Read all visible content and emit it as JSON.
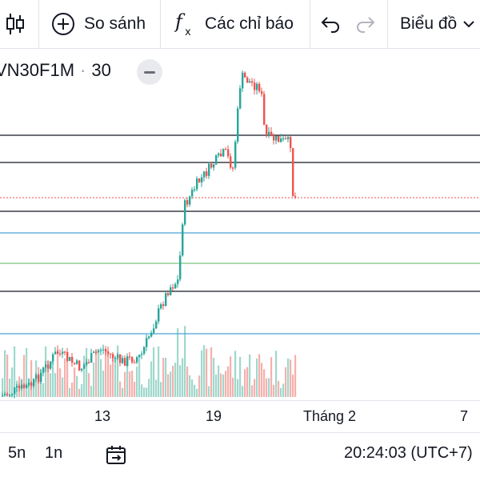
{
  "toolbar": {
    "compare_label": "So sánh",
    "indicators_label": "Các chỉ báo",
    "chart_type_label": "Biểu đồ"
  },
  "symbol": {
    "name": "VN30F1M",
    "interval": "30"
  },
  "xaxis": {
    "labels": [
      "13",
      "19",
      "Tháng 2",
      "7"
    ]
  },
  "bottom": {
    "interval_5d": "5n",
    "interval_1m": "1n",
    "clock": "20:24:03 (UTC+7)"
  },
  "colors": {
    "up": "#26a69a",
    "down": "#ef5350",
    "vol_up": "#9fd8cd",
    "vol_down": "#f5b0ad",
    "hline_black": "#131722",
    "hline_blue": "#4ba3d8",
    "hline_green": "#7cc47c",
    "last_price": "#ef5350"
  }
}
